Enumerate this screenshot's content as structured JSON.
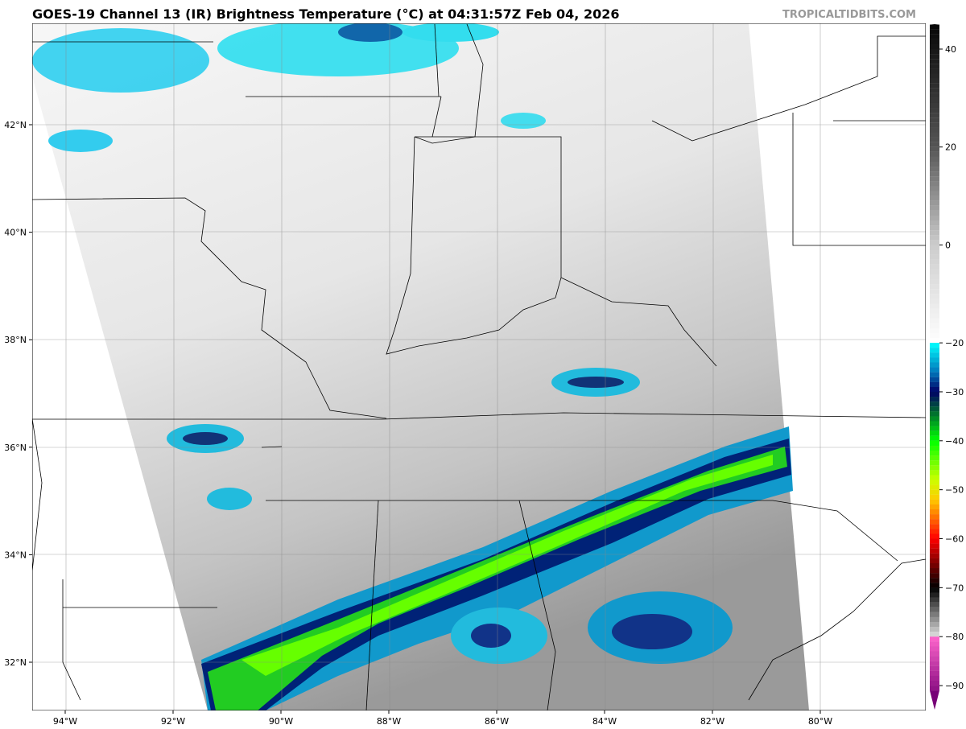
{
  "title": "GOES-19 Channel 13 (IR) Brightness Temperature (°C) at 04:31:57Z Feb 04, 2026",
  "watermark": "TROPICALTIDBITS.COM",
  "map": {
    "lon_ticks": [
      "94°W",
      "92°W",
      "90°W",
      "88°W",
      "86°W",
      "84°W",
      "82°W",
      "80°W"
    ],
    "lon_values": [
      -94,
      -92,
      -90,
      -88,
      -86,
      -84,
      -82,
      -80
    ],
    "lat_ticks": [
      "42°N",
      "40°N",
      "38°N",
      "36°N",
      "34°N",
      "32°N"
    ],
    "lat_values": [
      42,
      40,
      38,
      36,
      34,
      32
    ],
    "gridlines": true
  },
  "colorbar": {
    "range": [
      -93,
      47
    ],
    "ticks": [
      "40",
      "20",
      "0",
      "−20",
      "−30",
      "−40",
      "−50",
      "−60",
      "−70",
      "−80",
      "−90"
    ],
    "tick_values": [
      40,
      20,
      0,
      -20,
      -30,
      -40,
      -50,
      -60,
      -70,
      -80,
      -90
    ],
    "stops": [
      {
        "t": 47,
        "c": "#000000"
      },
      {
        "t": 20,
        "c": "#555555"
      },
      {
        "t": 0,
        "c": "#cccccc"
      },
      {
        "t": -19.9,
        "c": "#ffffff"
      },
      {
        "t": -20,
        "c": "#00ffff"
      },
      {
        "t": -26,
        "c": "#0077bb"
      },
      {
        "t": -30,
        "c": "#000066"
      },
      {
        "t": -34,
        "c": "#006633"
      },
      {
        "t": -40,
        "c": "#00ff00"
      },
      {
        "t": -48,
        "c": "#ccff00"
      },
      {
        "t": -52,
        "c": "#ffcc00"
      },
      {
        "t": -56,
        "c": "#ff6600"
      },
      {
        "t": -60,
        "c": "#ff0000"
      },
      {
        "t": -66,
        "c": "#660000"
      },
      {
        "t": -70,
        "c": "#000000"
      },
      {
        "t": -79.9,
        "c": "#dddddd"
      },
      {
        "t": -80,
        "c": "#ff66cc"
      },
      {
        "t": -93,
        "c": "#770077"
      }
    ]
  }
}
